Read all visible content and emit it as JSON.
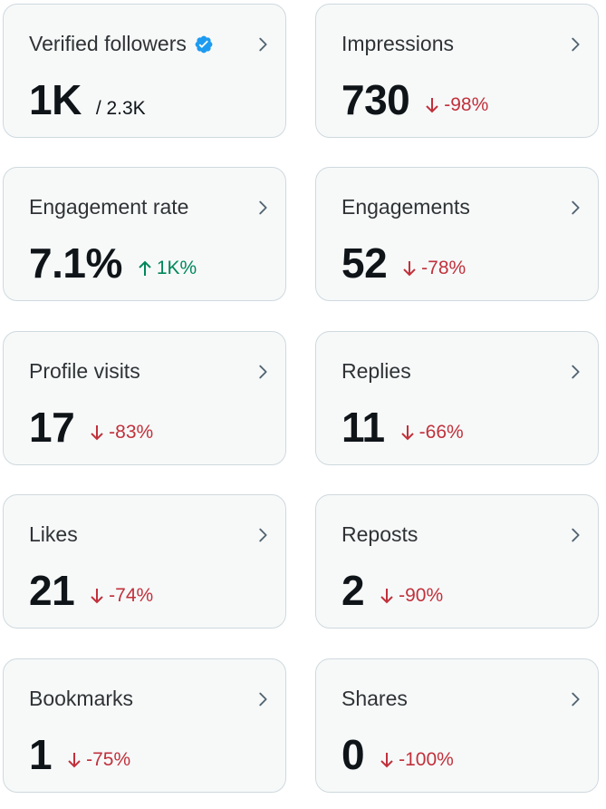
{
  "colors": {
    "card_bg": "#f7f9f9",
    "card_border": "#cfd9de",
    "down": "#c1313b",
    "up": "#00875a",
    "verified": "#1d9bf0"
  },
  "cards": [
    {
      "title": "Verified followers",
      "value": "1K",
      "sub": "/ 2.3K",
      "verified_icon": "verified-badge-icon"
    },
    {
      "title": "Impressions",
      "value": "730",
      "delta": "-98%",
      "direction": "down"
    },
    {
      "title": "Engagement rate",
      "value": "7.1%",
      "delta": "1K%",
      "direction": "up"
    },
    {
      "title": "Engagements",
      "value": "52",
      "delta": "-78%",
      "direction": "down"
    },
    {
      "title": "Profile visits",
      "value": "17",
      "delta": "-83%",
      "direction": "down"
    },
    {
      "title": "Replies",
      "value": "11",
      "delta": "-66%",
      "direction": "down"
    },
    {
      "title": "Likes",
      "value": "21",
      "delta": "-74%",
      "direction": "down"
    },
    {
      "title": "Reposts",
      "value": "2",
      "delta": "-90%",
      "direction": "down"
    },
    {
      "title": "Bookmarks",
      "value": "1",
      "delta": "-75%",
      "direction": "down"
    },
    {
      "title": "Shares",
      "value": "0",
      "delta": "-100%",
      "direction": "down"
    }
  ]
}
